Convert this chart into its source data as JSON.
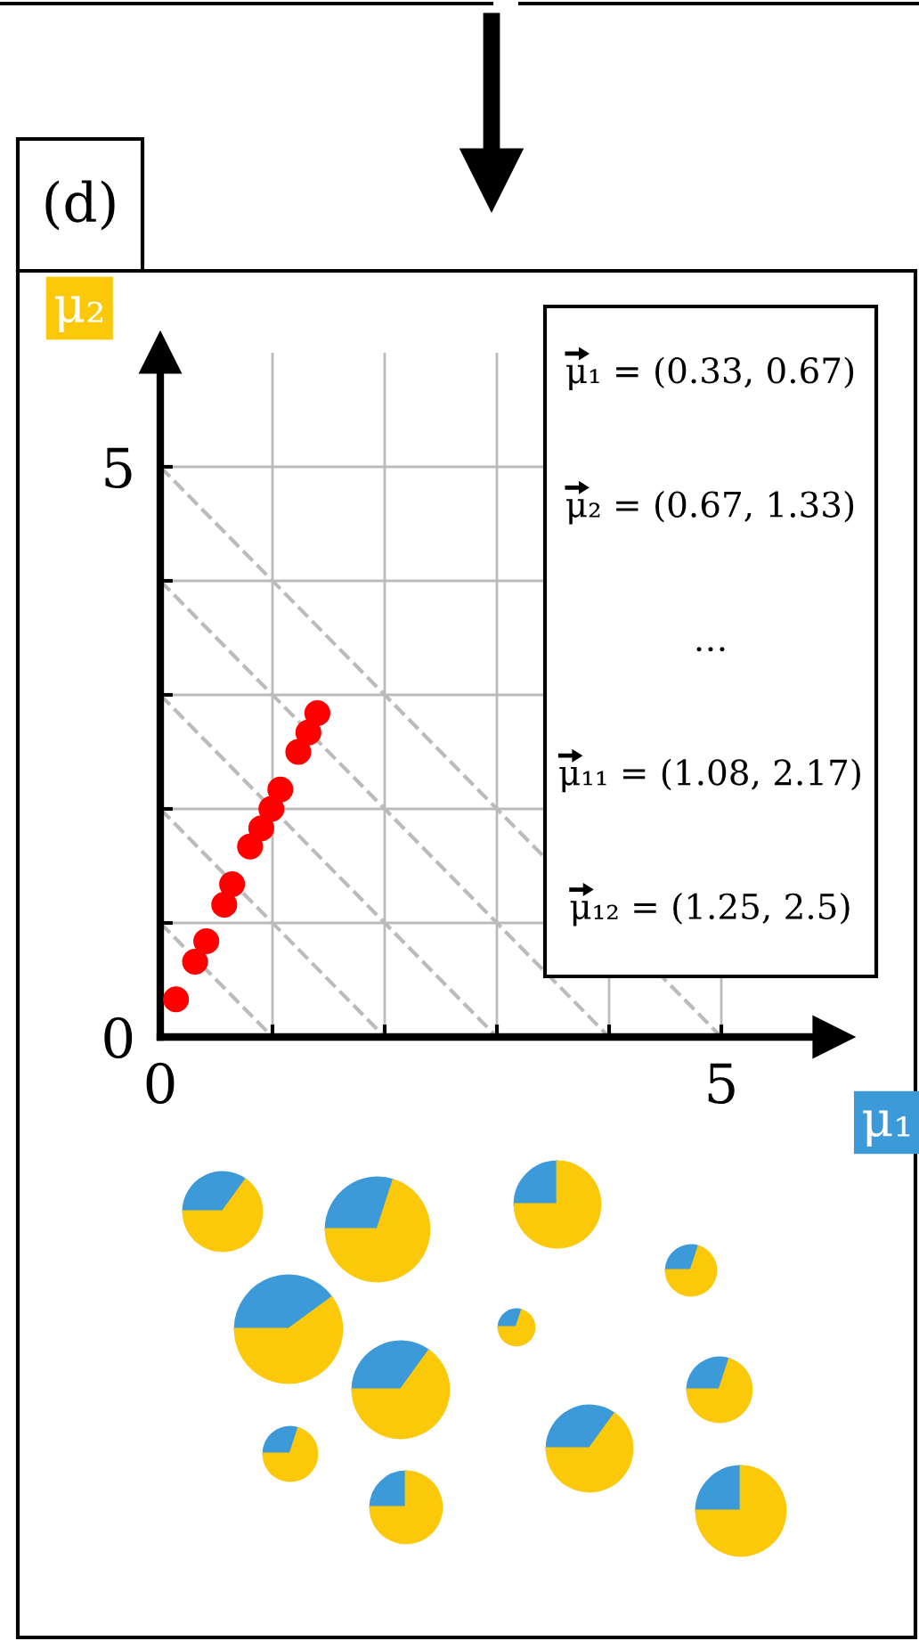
{
  "chart_data": {
    "type": "scatter",
    "title": "(d)",
    "xlabel": "μ₁",
    "ylabel": "μ₂",
    "xlim": [
      0,
      6
    ],
    "ylim": [
      0,
      6
    ],
    "xticks": [
      0,
      {
        "value": 1,
        "label": null
      },
      {
        "value": 2,
        "label": null
      },
      {
        "value": 3,
        "label": null
      },
      {
        "value": 4,
        "label": null
      },
      5
    ],
    "yticks": [
      0,
      {
        "value": 1,
        "label": null
      },
      {
        "value": 2,
        "label": null
      },
      {
        "value": 3,
        "label": null
      },
      {
        "value": 4,
        "label": null
      },
      5
    ],
    "grid": true,
    "series": [
      {
        "type": "line",
        "color": "#bbbbbb",
        "line_style": "dashed",
        "marker": "none",
        "x": [
          0,
          1
        ],
        "values": [
          1,
          0
        ]
      },
      {
        "type": "line",
        "color": "#bbbbbb",
        "line_style": "dashed",
        "marker": "none",
        "x": [
          0,
          2
        ],
        "values": [
          2,
          0
        ]
      },
      {
        "type": "line",
        "color": "#bbbbbb",
        "line_style": "dashed",
        "marker": "none",
        "x": [
          0,
          3
        ],
        "values": [
          3,
          0
        ]
      },
      {
        "type": "line",
        "color": "#bbbbbb",
        "line_style": "dashed",
        "marker": "none",
        "x": [
          0,
          4
        ],
        "values": [
          4,
          0
        ]
      },
      {
        "type": "line",
        "color": "#bbbbbb",
        "line_style": "dashed",
        "marker": "none",
        "x": [
          0,
          5
        ],
        "values": [
          5,
          0
        ]
      },
      {
        "color": "#ff0000",
        "marker": "circle",
        "x": [
          0.14,
          0.31,
          0.41,
          0.57,
          0.64,
          0.8,
          0.9,
          0.99,
          1.07,
          1.23,
          1.32,
          1.4
        ],
        "values": [
          0.33,
          0.66,
          0.84,
          1.16,
          1.34,
          1.67,
          1.83,
          2.0,
          2.17,
          2.5,
          2.67,
          2.84
        ]
      }
    ],
    "annotations": [
      "μ₁ = (0.33, 0.67)",
      "μ₂ = (0.67, 1.33)",
      "…",
      "μ₁₁ = (1.08, 2.17)",
      "μ₁₂ = (1.25, 2.5)"
    ]
  }
}
